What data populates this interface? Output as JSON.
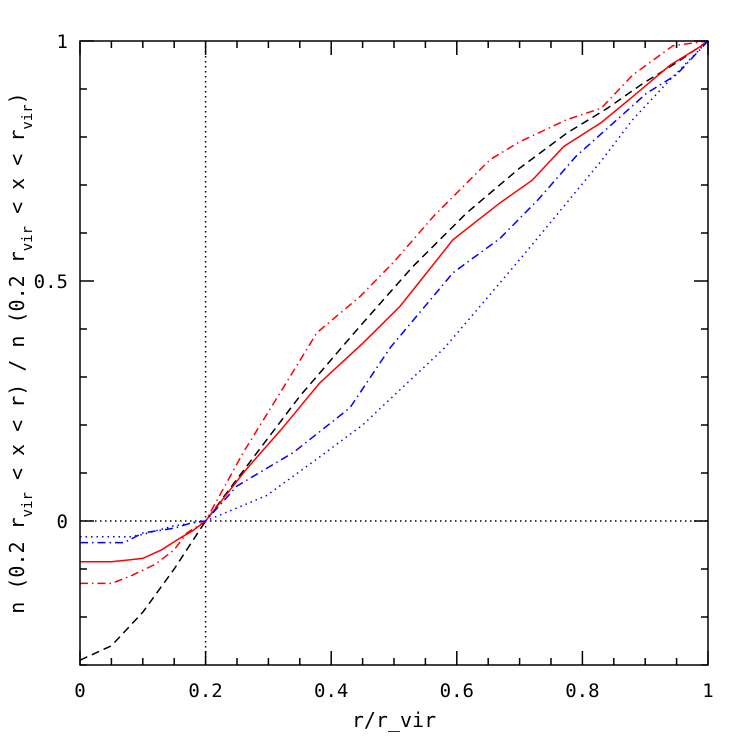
{
  "chart_data": {
    "type": "line",
    "title": "",
    "xlabel": "r/r_vir",
    "ylabel": "n (0.2 r_vir < x < r) / n (0.2 r_vir < x < r_vir)",
    "xlim": [
      0,
      1
    ],
    "ylim": [
      -0.3,
      1
    ],
    "x_ticks": [
      0,
      0.2,
      0.4,
      0.6,
      0.8,
      1
    ],
    "x_tick_labels": [
      "0",
      "0.2",
      "0.4",
      "0.6",
      "0.8",
      "1"
    ],
    "y_ticks": [
      0,
      0.5,
      1
    ],
    "y_tick_labels": [
      "0",
      "0.5",
      "1"
    ],
    "grid": false,
    "reference_lines": [
      {
        "axis": "x",
        "value": 0.2,
        "style": "dotted",
        "color": "#000000"
      },
      {
        "axis": "y",
        "value": 0,
        "style": "dotted",
        "color": "#000000"
      }
    ],
    "series": [
      {
        "style": "dashed",
        "color": "#000000",
        "x": [
          0,
          0.05,
          0.1,
          0.15,
          0.2,
          0.27,
          0.35,
          0.446,
          0.53,
          0.616,
          0.7,
          0.775,
          0.84,
          0.897,
          0.95,
          1
        ],
        "y": [
          -0.29,
          -0.26,
          -0.19,
          -0.1,
          0,
          0.122,
          0.26,
          0.406,
          0.53,
          0.642,
          0.735,
          0.808,
          0.86,
          0.912,
          0.955,
          1
        ]
      },
      {
        "style": "solid",
        "color": "#ff0000",
        "x": [
          0,
          0.05,
          0.1,
          0.13,
          0.16,
          0.18,
          0.2,
          0.265,
          0.32,
          0.382,
          0.45,
          0.51,
          0.594,
          0.669,
          0.72,
          0.77,
          0.83,
          0.88,
          0.94,
          0.99,
          1
        ],
        "y": [
          -0.085,
          -0.085,
          -0.078,
          -0.06,
          -0.035,
          -0.02,
          0,
          0.108,
          0.19,
          0.288,
          0.37,
          0.448,
          0.586,
          0.663,
          0.71,
          0.78,
          0.83,
          0.884,
          0.95,
          0.99,
          1
        ]
      },
      {
        "style": "dashdot",
        "color": "#ff0000",
        "x": [
          0,
          0.05,
          0.08,
          0.12,
          0.15,
          0.17,
          0.2,
          0.26,
          0.32,
          0.377,
          0.446,
          0.5,
          0.563,
          0.653,
          0.7,
          0.775,
          0.83,
          0.88,
          0.944,
          1
        ],
        "y": [
          -0.13,
          -0.13,
          -0.115,
          -0.09,
          -0.06,
          -0.025,
          0,
          0.143,
          0.27,
          0.392,
          0.468,
          0.54,
          0.635,
          0.753,
          0.79,
          0.836,
          0.86,
          0.929,
          0.99,
          1
        ]
      },
      {
        "style": "dashdot",
        "color": "#0000ff",
        "x": [
          0,
          0.07,
          0.1,
          0.15,
          0.18,
          0.2,
          0.25,
          0.34,
          0.43,
          0.494,
          0.594,
          0.669,
          0.73,
          0.79,
          0.85,
          0.902,
          0.95,
          1
        ],
        "y": [
          -0.045,
          -0.045,
          -0.025,
          -0.015,
          -0.003,
          0,
          0.073,
          0.143,
          0.236,
          0.361,
          0.517,
          0.589,
          0.67,
          0.76,
          0.83,
          0.891,
          0.93,
          1
        ]
      },
      {
        "style": "dotted",
        "color": "#0000ff",
        "x": [
          0,
          0.08,
          0.1,
          0.15,
          0.2,
          0.297,
          0.377,
          0.45,
          0.51,
          0.58,
          0.642,
          0.71,
          0.775,
          0.83,
          0.88,
          0.94,
          1
        ],
        "y": [
          -0.033,
          -0.033,
          -0.028,
          -0.01,
          0,
          0.053,
          0.129,
          0.2,
          0.274,
          0.36,
          0.455,
          0.56,
          0.663,
          0.75,
          0.836,
          0.92,
          1
        ]
      }
    ]
  }
}
